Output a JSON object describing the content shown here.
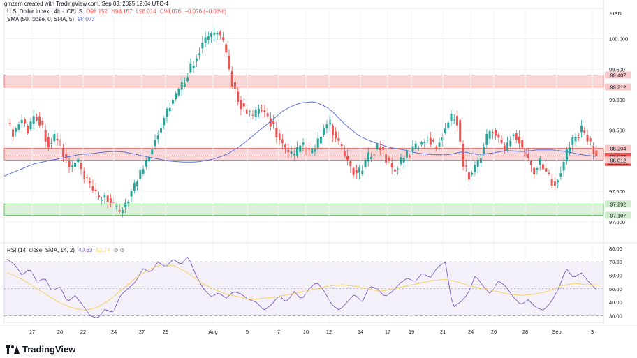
{
  "header": {
    "created_by": "gmzern created with TradingView.com, Sep 03, 2025 12:04 UTC-4"
  },
  "legend_main": {
    "symbol": "U.S. Dollar Index · 4h · ICEUS",
    "open": "O98.152",
    "high": "H98.157",
    "low": "L98.014",
    "close": "C98.076",
    "change": "−0.076 (−0.08%)",
    "sma_label": "SMA (50, close, 0, SMA, 5)",
    "sma_value": "98.073"
  },
  "legend_rsi": {
    "label": "RSI (14, close, SMA, 14, 2)",
    "rsi_value": "49.63",
    "rsi_sma_value": "52.74",
    "icons": "⊘ ⊘"
  },
  "axis": {
    "currency": "USD",
    "price_ticks": [
      "100.000",
      "99.500",
      "99.000",
      "98.500",
      "98.000",
      "97.500",
      "97.000"
    ],
    "rsi_ticks": [
      "80.00",
      "70.00",
      "60.00",
      "50.00",
      "40.00",
      "30.00"
    ],
    "time_ticks": [
      "17",
      "20",
      "22",
      "24",
      "27",
      "29",
      "Aug",
      "5",
      "7",
      "10",
      "12",
      "14",
      "17",
      "19",
      "21",
      "24",
      "26",
      "28",
      "Sep",
      "3"
    ]
  },
  "price_labels": {
    "zone_top_high": "99.407",
    "zone_top_low": "99.212",
    "zone_mid_high": "98.204",
    "last_price": "98.076",
    "countdown": "02:55:18",
    "zone_mid_low": "98.012",
    "zone_bot_high": "97.292",
    "zone_bot_low": "97.107"
  },
  "colors": {
    "up": "#26a69a",
    "down": "#ef5350",
    "sma": "#5b6fd6",
    "rsi": "#7e57c2",
    "rsi_sma": "#f7d060",
    "resist": "#f6c9cb",
    "support": "#cfeccd",
    "last_bg": "#ef5350"
  },
  "footer": {
    "brand": "TradingView"
  },
  "chart_data": [
    {
      "type": "candlestick",
      "title": "U.S. Dollar Index · 4h · ICEUS",
      "ylim": [
        96.7,
        100.5
      ],
      "zones": [
        [
          99.212,
          99.407
        ],
        [
          98.012,
          98.204
        ],
        [
          97.107,
          97.292
        ]
      ],
      "close_path": [
        98.6,
        98.45,
        98.7,
        98.5,
        98.8,
        98.55,
        98.25,
        98.4,
        98.1,
        97.85,
        98.0,
        97.7,
        97.55,
        97.35,
        97.45,
        97.25,
        97.15,
        97.35,
        97.55,
        97.8,
        98.05,
        98.35,
        98.6,
        98.9,
        99.05,
        99.25,
        99.5,
        99.75,
        99.95,
        100.05,
        100.1,
        99.85,
        99.3,
        99.0,
        98.8,
        98.7,
        98.85,
        98.75,
        98.55,
        98.3,
        98.1,
        98.05,
        98.3,
        98.1,
        98.2,
        98.5,
        98.6,
        98.3,
        98.1,
        97.9,
        97.75,
        97.95,
        98.15,
        98.25,
        98.05,
        97.85,
        97.95,
        98.1,
        98.2,
        98.3,
        98.4,
        98.2,
        98.45,
        98.65,
        98.8,
        97.9,
        97.75,
        97.95,
        98.25,
        98.55,
        98.35,
        98.15,
        98.5,
        98.35,
        98.05,
        97.85,
        97.95,
        97.75,
        97.65,
        97.85,
        98.2,
        98.4,
        98.5,
        98.3,
        98.08
      ],
      "sma_path": [
        97.75,
        97.85,
        97.95,
        98.0,
        98.05,
        98.1,
        98.12,
        98.15,
        98.15,
        98.1,
        98.05,
        98.0,
        97.98,
        97.98,
        98.02,
        98.1,
        98.25,
        98.45,
        98.65,
        98.85,
        98.95,
        98.97,
        98.85,
        98.6,
        98.4,
        98.3,
        98.22,
        98.18,
        98.12,
        98.1,
        98.1,
        98.15,
        98.1,
        98.13,
        98.17,
        98.15,
        98.18,
        98.18,
        98.15,
        98.1,
        98.07
      ],
      "last": 98.076
    },
    {
      "type": "line",
      "title": "RSI (14, close, SMA, 14, 2)",
      "ylim": [
        25,
        82
      ],
      "bands": [
        30,
        70
      ],
      "rsi_path": [
        72,
        68,
        60,
        65,
        55,
        58,
        48,
        52,
        40,
        45,
        38,
        30,
        28,
        35,
        32,
        45,
        50,
        55,
        65,
        62,
        70,
        66,
        72,
        68,
        74,
        60,
        50,
        44,
        47,
        43,
        48,
        46,
        42,
        40,
        34,
        38,
        45,
        40,
        48,
        42,
        50,
        55,
        48,
        38,
        34,
        40,
        46,
        40,
        52,
        50,
        44,
        48,
        54,
        58,
        55,
        62,
        58,
        66,
        70,
        36,
        40,
        46,
        60,
        52,
        46,
        56,
        52,
        44,
        38,
        42,
        36,
        34,
        40,
        50,
        65,
        58,
        62,
        55,
        49.63
      ],
      "rsi_sma_path": [
        62,
        58,
        52,
        46,
        40,
        36,
        34,
        36,
        42,
        50,
        58,
        64,
        68,
        67,
        62,
        55,
        50,
        46,
        44,
        42,
        43,
        44,
        46,
        48,
        50,
        52,
        53,
        52,
        50,
        48,
        50,
        52,
        54,
        56,
        57,
        55,
        52,
        50,
        48,
        46,
        45,
        46,
        48,
        52,
        54,
        53,
        52.74
      ]
    }
  ]
}
